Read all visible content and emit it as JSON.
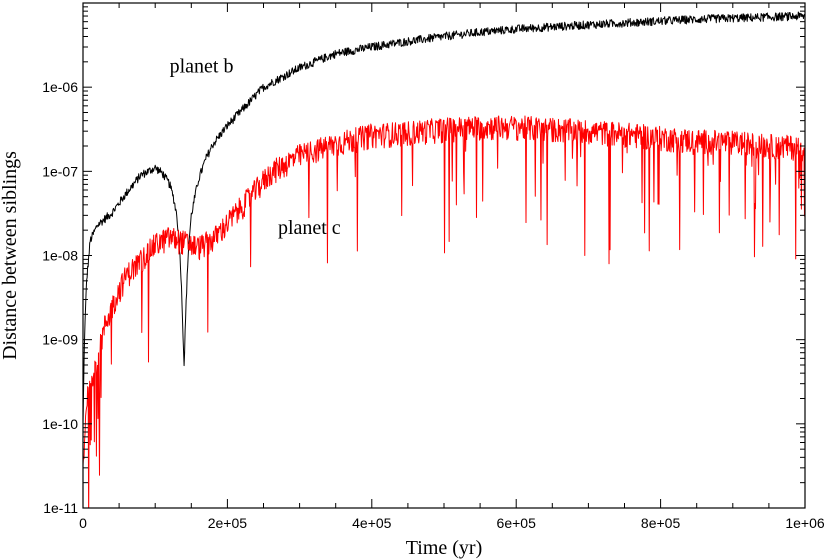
{
  "chart_data": {
    "type": "line",
    "title": "",
    "xlabel": "Time   (yr)",
    "ylabel": "Distance between siblings",
    "xlim": [
      0,
      1000000
    ],
    "ylim": [
      1e-11,
      1e-05
    ],
    "yscale": "log",
    "x_ticks": [
      {
        "value": 0,
        "label": "0"
      },
      {
        "value": 200000,
        "label": "2e+05"
      },
      {
        "value": 400000,
        "label": "4e+05"
      },
      {
        "value": 600000,
        "label": "6e+05"
      },
      {
        "value": 800000,
        "label": "8e+05"
      },
      {
        "value": 1000000,
        "label": "1e+06"
      }
    ],
    "y_ticks": [
      {
        "value": 1e-11,
        "label": "1e-11"
      },
      {
        "value": 1e-10,
        "label": "1e-10"
      },
      {
        "value": 1e-09,
        "label": "1e-09"
      },
      {
        "value": 1e-08,
        "label": "1e-08"
      },
      {
        "value": 1e-07,
        "label": "1e-07"
      },
      {
        "value": 1e-06,
        "label": "1e-06"
      }
    ],
    "series": [
      {
        "name": "planet b",
        "color": "#000000",
        "x": [
          0,
          2000,
          5000,
          10000,
          20000,
          40000,
          60000,
          80000,
          100000,
          110000,
          120000,
          125000,
          130000,
          133000,
          135000,
          137000,
          140000,
          143000,
          146000,
          150000,
          155000,
          160000,
          170000,
          180000,
          200000,
          250000,
          300000,
          350000,
          400000,
          450000,
          500000,
          550000,
          600000,
          650000,
          700000,
          750000,
          800000,
          850000,
          900000,
          950000,
          1000000
        ],
        "y": [
          1e-10,
          1e-09,
          5e-09,
          1.5e-08,
          2.3e-08,
          3.2e-08,
          5.5e-08,
          9e-08,
          1.1e-07,
          9.5e-08,
          7e-08,
          5e-08,
          3e-08,
          1.5e-08,
          8e-09,
          3e-09,
          5e-10,
          3e-09,
          1.2e-08,
          3e-08,
          5e-08,
          8e-08,
          1.4e-07,
          2.1e-07,
          3.5e-07,
          1e-06,
          1.7e-06,
          2.5e-06,
          3e-06,
          3.5e-06,
          4e-06,
          4.5e-06,
          4.9e-06,
          5.2e-06,
          5.5e-06,
          5.8e-06,
          6.1e-06,
          6.4e-06,
          6.6e-06,
          6.8e-06,
          7e-06
        ]
      },
      {
        "name": "planet c",
        "color": "#ff0000",
        "x": [
          0,
          5000,
          10000,
          20000,
          30000,
          40000,
          50000,
          60000,
          80000,
          100000,
          120000,
          140000,
          160000,
          180000,
          200000,
          230000,
          260000,
          300000,
          350000,
          400000,
          450000,
          500000,
          550000,
          600000,
          650000,
          700000,
          750000,
          800000,
          850000,
          900000,
          950000,
          1000000
        ],
        "y": [
          3e-11,
          2e-10,
          3.5e-10,
          6e-10,
          1.5e-09,
          2.5e-09,
          4e-09,
          6e-09,
          9e-09,
          1.4e-08,
          1.7e-08,
          1.5e-08,
          1.3e-08,
          1.6e-08,
          2.5e-08,
          5e-08,
          1e-07,
          1.6e-07,
          2.2e-07,
          2.8e-07,
          3e-07,
          3.3e-07,
          3.5e-07,
          3.5e-07,
          3.3e-07,
          3.1e-07,
          2.9e-07,
          2.6e-07,
          2.4e-07,
          2.3e-07,
          2.1e-07,
          2e-07
        ]
      }
    ],
    "annotations": [
      {
        "text": "planet b",
        "x": 120000,
        "y": 1.5e-06
      },
      {
        "text": "planet c",
        "x": 270000,
        "y": 1.8e-08
      }
    ]
  }
}
